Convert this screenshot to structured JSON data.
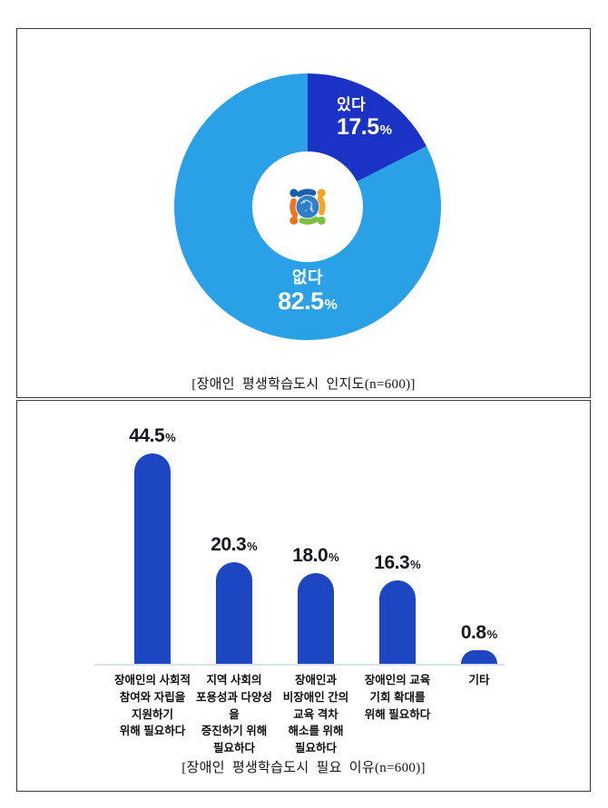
{
  "page": {
    "background": "#ffffff"
  },
  "logo": {
    "name": "people-around-globe-logo",
    "globe_color": "#2e7fc6",
    "figure_colors": {
      "top_left": "#1d5fae",
      "top_right": "#f5a623",
      "bottom_right": "#7dc142",
      "bottom_left": "#ef7422"
    }
  },
  "chart_data": [
    {
      "type": "donut",
      "title": "[장애인 평생학습도시 인지도(n=600)]",
      "n": 600,
      "unit": "%",
      "start_angle_deg": 0,
      "direction": "clockwise",
      "hole_ratio": 0.41,
      "center_logo": "people-around-globe-logo",
      "series": [
        {
          "label": "있다",
          "value": 17.5,
          "value_label": "17.5",
          "color": "#1a33c4"
        },
        {
          "label": "없다",
          "value": 82.5,
          "value_label": "82.5",
          "color": "#2aa1e6"
        }
      ]
    },
    {
      "type": "bar",
      "title": "[장애인 평생학습도시 필요 이유(n=600)]",
      "n": 600,
      "unit": "%",
      "bar_color": "#1c46c2",
      "value_label_color": "#15181e",
      "baseline_color": "#dde1e8",
      "categories": [
        "장애인의 사회적\n참여와 자립을\n지원하기\n위해 필요하다",
        "지역 사회의\n포용성과 다양성을\n증진하기 위해\n필요하다",
        "장애인과\n비장애인 간의\n교육 격차\n해소를 위해\n필요하다",
        "장애인의 교육\n기회 확대를\n위해 필요하다",
        "기타"
      ],
      "values": [
        44.5,
        20.3,
        18.0,
        16.3,
        0.8
      ],
      "value_labels": [
        "44.5",
        "20.3",
        "18.0",
        "16.3",
        "0.8"
      ]
    }
  ]
}
